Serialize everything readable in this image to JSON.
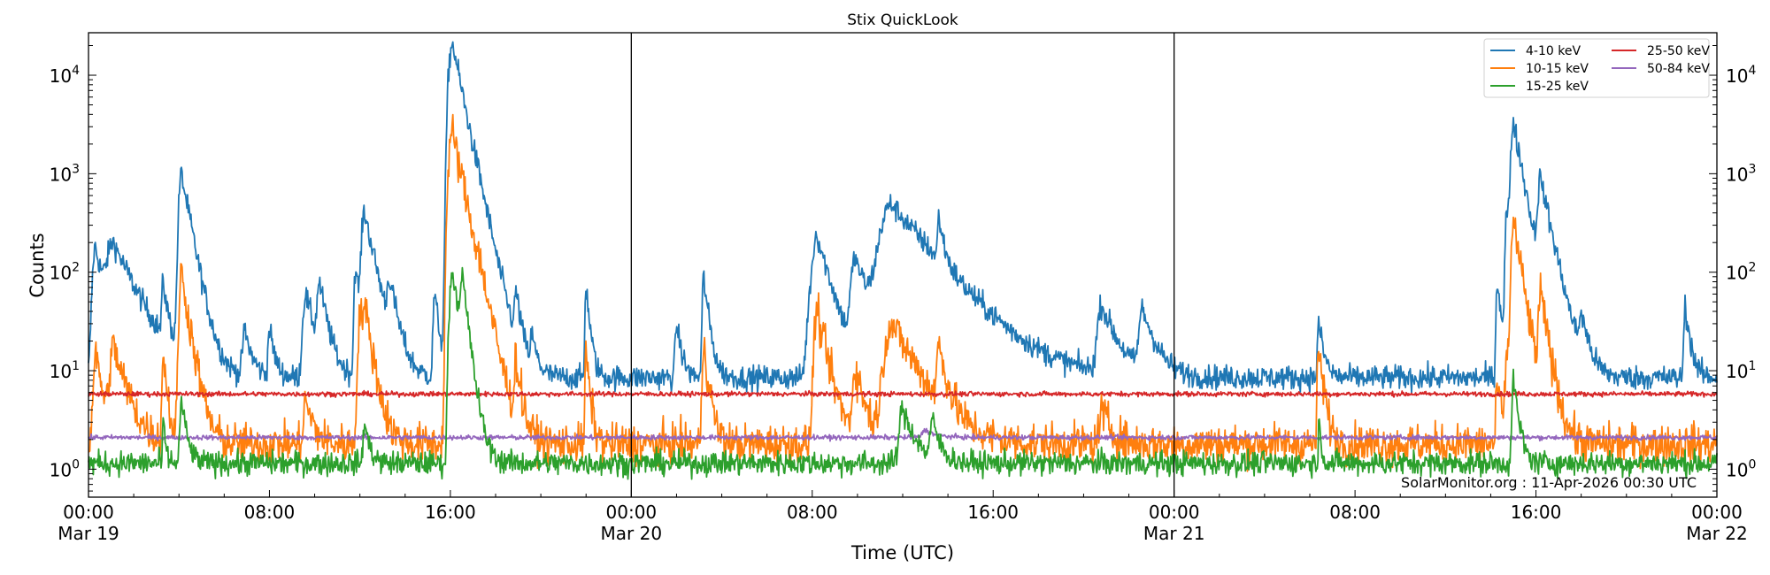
{
  "chart_data": {
    "type": "line",
    "title": "Stix QuickLook",
    "xlabel": "Time (UTC)",
    "ylabel": "Counts",
    "yscale": "log",
    "ylim": [
      0.52,
      27000
    ],
    "xlim_hours": [
      0,
      72
    ],
    "x_ticks": [
      {
        "h": 0,
        "label": "00:00",
        "date": "Mar 19"
      },
      {
        "h": 8,
        "label": "08:00",
        "date": ""
      },
      {
        "h": 16,
        "label": "16:00",
        "date": ""
      },
      {
        "h": 24,
        "label": "00:00",
        "date": "Mar 20"
      },
      {
        "h": 32,
        "label": "08:00",
        "date": ""
      },
      {
        "h": 40,
        "label": "16:00",
        "date": ""
      },
      {
        "h": 48,
        "label": "00:00",
        "date": "Mar 21"
      },
      {
        "h": 56,
        "label": "08:00",
        "date": ""
      },
      {
        "h": 64,
        "label": "16:00",
        "date": ""
      },
      {
        "h": 72,
        "label": "00:00",
        "date": "Mar 22"
      }
    ],
    "y_ticks": [
      {
        "v": 1,
        "base": "10",
        "exp": "0"
      },
      {
        "v": 10,
        "base": "10",
        "exp": "1"
      },
      {
        "v": 100,
        "base": "10",
        "exp": "2"
      },
      {
        "v": 1000,
        "base": "10",
        "exp": "3"
      },
      {
        "v": 10000,
        "base": "10",
        "exp": "4"
      }
    ],
    "day_boundaries_hours": [
      24,
      48
    ],
    "legend_position": "top-right",
    "annotation": "SolarMonitor.org : 11-Apr-2026 00:30 UTC",
    "series": [
      {
        "name": "4-10 keV",
        "color": "#1f77b4",
        "baseline": 8.5,
        "flares": [
          [
            0.3,
            180,
            0.4
          ],
          [
            1.1,
            180,
            0.9
          ],
          [
            3.3,
            65,
            0.2
          ],
          [
            4.1,
            1000,
            0.35
          ],
          [
            6.9,
            25,
            0.3
          ],
          [
            8.0,
            27,
            0.2
          ],
          [
            9.6,
            60,
            0.4
          ],
          [
            10.2,
            70,
            0.3
          ],
          [
            11.8,
            110,
            0.2
          ],
          [
            12.2,
            400,
            0.4
          ],
          [
            13.3,
            65,
            0.3
          ],
          [
            15.3,
            60,
            0.2
          ],
          [
            15.95,
            8000,
            0.3
          ],
          [
            16.1,
            16000,
            0.4
          ],
          [
            17.2,
            80,
            0.4
          ],
          [
            18.9,
            50,
            0.2
          ],
          [
            19.6,
            20,
            0.2
          ],
          [
            22.0,
            75,
            0.15
          ],
          [
            26.0,
            30,
            0.2
          ],
          [
            27.2,
            90,
            0.2
          ],
          [
            32.0,
            70,
            0.6
          ],
          [
            32.2,
            200,
            0.5
          ],
          [
            33.9,
            130,
            0.6
          ],
          [
            35.5,
            480,
            1.6
          ],
          [
            37.6,
            240,
            0.2
          ],
          [
            44.8,
            45,
            0.6
          ],
          [
            46.6,
            40,
            0.5
          ],
          [
            54.4,
            30,
            0.2
          ],
          [
            62.3,
            80,
            0.2
          ],
          [
            62.7,
            400,
            0.2
          ],
          [
            63.0,
            3300,
            0.35
          ],
          [
            64.2,
            800,
            0.4
          ],
          [
            66.0,
            30,
            0.3
          ],
          [
            70.6,
            45,
            0.2
          ]
        ]
      },
      {
        "name": "10-15 keV",
        "color": "#ff7f0e",
        "baseline": 1.8,
        "flares": [
          [
            0.3,
            15,
            0.3
          ],
          [
            1.1,
            17,
            0.5
          ],
          [
            3.3,
            16,
            0.15
          ],
          [
            4.1,
            100,
            0.3
          ],
          [
            9.6,
            5,
            0.3
          ],
          [
            12.0,
            35,
            0.3
          ],
          [
            12.2,
            30,
            0.3
          ],
          [
            15.95,
            1000,
            0.3
          ],
          [
            16.1,
            2000,
            0.4
          ],
          [
            16.6,
            50,
            0.3
          ],
          [
            17.2,
            30,
            0.3
          ],
          [
            18.9,
            12,
            0.2
          ],
          [
            22.0,
            15,
            0.15
          ],
          [
            27.2,
            20,
            0.2
          ],
          [
            32.2,
            40,
            0.4
          ],
          [
            33.9,
            10,
            0.4
          ],
          [
            35.5,
            30,
            1.0
          ],
          [
            37.6,
            15,
            0.3
          ],
          [
            44.8,
            4,
            0.4
          ],
          [
            54.4,
            16,
            0.2
          ],
          [
            62.3,
            7,
            0.2
          ],
          [
            62.7,
            15,
            0.2
          ],
          [
            63.0,
            330,
            0.3
          ],
          [
            64.2,
            55,
            0.3
          ]
        ]
      },
      {
        "name": "15-25 keV",
        "color": "#2ca02c",
        "baseline": 1.15,
        "flares": [
          [
            3.3,
            3,
            0.1
          ],
          [
            4.1,
            5,
            0.2
          ],
          [
            12.2,
            3,
            0.2
          ],
          [
            15.95,
            30,
            0.2
          ],
          [
            16.1,
            90,
            0.3
          ],
          [
            16.5,
            80,
            0.2
          ],
          [
            36.0,
            4,
            0.5
          ],
          [
            37.3,
            3,
            0.3
          ],
          [
            54.4,
            3,
            0.1
          ],
          [
            63.0,
            8,
            0.2
          ]
        ]
      },
      {
        "name": "25-50 keV",
        "color": "#d62728",
        "baseline": 5.8,
        "flares": []
      },
      {
        "name": "50-84 keV",
        "color": "#9467bd",
        "baseline": 2.1,
        "flares": [
          [
            37.0,
            2.5,
            0.5
          ]
        ]
      }
    ]
  }
}
